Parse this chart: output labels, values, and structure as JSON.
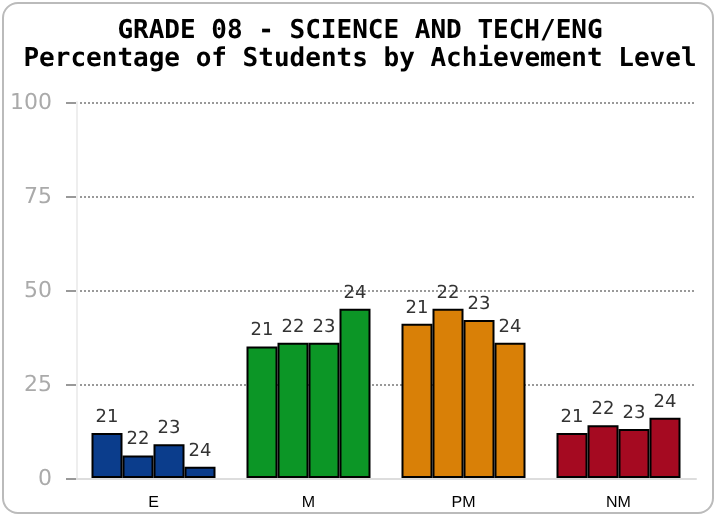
{
  "chart_data": {
    "type": "bar",
    "title": "GRADE 08 - SCIENCE AND TECH/ENG",
    "subtitle": "Percentage of Students by Achievement Level",
    "categories": [
      "E",
      "M",
      "PM",
      "NM"
    ],
    "series": [
      {
        "name": "21",
        "colors": [
          "#0b3d8c",
          "#0c9626",
          "#d98007",
          "#a50a21"
        ],
        "values": [
          12,
          35,
          41,
          12
        ]
      },
      {
        "name": "22",
        "colors": [
          "#0b3d8c",
          "#0c9626",
          "#d98007",
          "#a50a21"
        ],
        "values": [
          6,
          36,
          45,
          14
        ]
      },
      {
        "name": "23",
        "colors": [
          "#0b3d8c",
          "#0c9626",
          "#d98007",
          "#a50a21"
        ],
        "values": [
          9,
          36,
          42,
          13
        ]
      },
      {
        "name": "24",
        "colors": [
          "#0b3d8c",
          "#0c9626",
          "#d98007",
          "#a50a21"
        ],
        "values": [
          3,
          45,
          36,
          16
        ]
      }
    ],
    "ylim": [
      0,
      100
    ],
    "yticks": [
      0,
      25,
      50,
      75,
      100
    ],
    "grid": "y",
    "legend": false
  }
}
